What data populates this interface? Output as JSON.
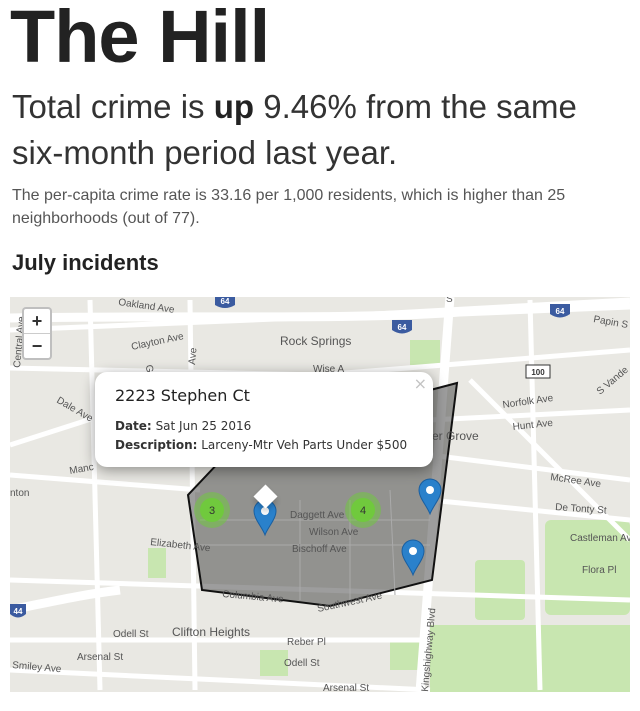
{
  "header": {
    "title": "The Hill"
  },
  "headline": {
    "before": "Total crime is ",
    "emphasis": "up",
    "after": " 9.46% from the same six-month period last year."
  },
  "summary": "The per-capita crime rate is 33.16 per 1,000 residents, which is higher than 25 neighborhoods (out of 77).",
  "section_title": "July incidents",
  "map": {
    "zoom_in": "+",
    "zoom_out": "−",
    "labels": [
      "Oakland Ave",
      "Clayton Ave",
      "Rock Springs",
      "Wise A",
      "Dale Ave",
      "Manc",
      "nton",
      "Elizabeth Ave",
      "Daggett Ave",
      "Wilson Ave",
      "Bischoff Ave",
      "Columbia Ave",
      "Southwest Ave",
      "Odell St",
      "Clifton Heights",
      "Reber Pl",
      "Odell St",
      "Arsenal St",
      "Smiley Ave",
      "Arsenal St",
      "Norfolk Ave",
      "Hunt Ave",
      "er Grove",
      "McRee Ave",
      "De Tonty St",
      "Castleman Av",
      "Flora Pl",
      "Papin S",
      "S Vande",
      "Kingshighway Blvd",
      "Central Ave",
      "Gr",
      "Ave",
      "S"
    ],
    "shields": [
      "64",
      "64",
      "64",
      "100",
      "44"
    ],
    "clusters": [
      3,
      4
    ],
    "popup": {
      "title": "2223 Stephen Ct",
      "date_label": "Date:",
      "date": "Sat Jun 25 2016",
      "description_label": "Description:",
      "description": "Larceny-Mtr Veh Parts Under $500",
      "close": "×"
    }
  }
}
